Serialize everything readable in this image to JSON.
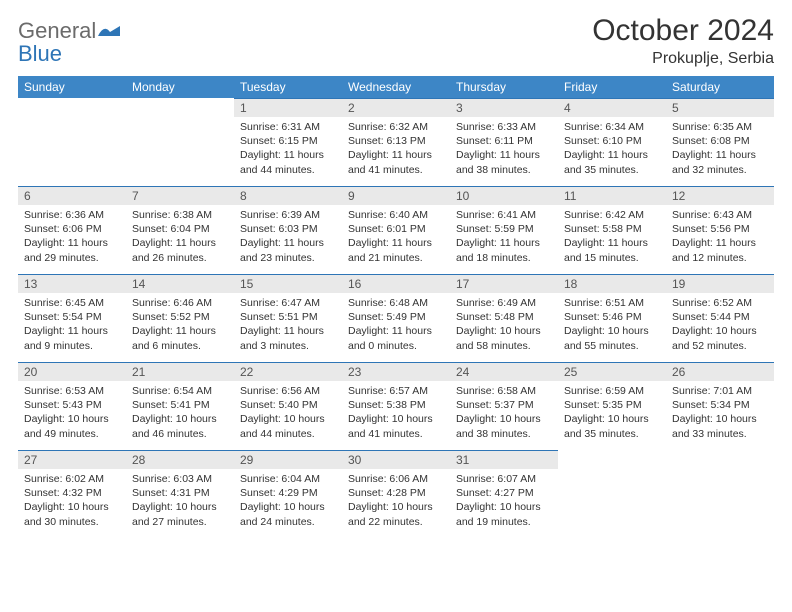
{
  "logo": {
    "text1": "General",
    "text2": "Blue"
  },
  "title": {
    "month_year": "October 2024",
    "location": "Prokuplje, Serbia"
  },
  "colors": {
    "header_bg": "#3d86c6",
    "header_text": "#ffffff",
    "daynum_bg": "#e9e9e9",
    "daynum_border": "#2e75b6",
    "body_text": "#333333",
    "logo_gray": "#6b6b6b",
    "logo_blue": "#2e75b6"
  },
  "fonts": {
    "month_year_size": 30,
    "location_size": 16,
    "header_size": 12,
    "daynum_size": 12,
    "cell_size": 10.5
  },
  "day_labels": [
    "Sunday",
    "Monday",
    "Tuesday",
    "Wednesday",
    "Thursday",
    "Friday",
    "Saturday"
  ],
  "weeks": [
    [
      null,
      null,
      {
        "n": "1",
        "sr": "Sunrise: 6:31 AM",
        "ss": "Sunset: 6:15 PM",
        "dl1": "Daylight: 11 hours",
        "dl2": "and 44 minutes."
      },
      {
        "n": "2",
        "sr": "Sunrise: 6:32 AM",
        "ss": "Sunset: 6:13 PM",
        "dl1": "Daylight: 11 hours",
        "dl2": "and 41 minutes."
      },
      {
        "n": "3",
        "sr": "Sunrise: 6:33 AM",
        "ss": "Sunset: 6:11 PM",
        "dl1": "Daylight: 11 hours",
        "dl2": "and 38 minutes."
      },
      {
        "n": "4",
        "sr": "Sunrise: 6:34 AM",
        "ss": "Sunset: 6:10 PM",
        "dl1": "Daylight: 11 hours",
        "dl2": "and 35 minutes."
      },
      {
        "n": "5",
        "sr": "Sunrise: 6:35 AM",
        "ss": "Sunset: 6:08 PM",
        "dl1": "Daylight: 11 hours",
        "dl2": "and 32 minutes."
      }
    ],
    [
      {
        "n": "6",
        "sr": "Sunrise: 6:36 AM",
        "ss": "Sunset: 6:06 PM",
        "dl1": "Daylight: 11 hours",
        "dl2": "and 29 minutes."
      },
      {
        "n": "7",
        "sr": "Sunrise: 6:38 AM",
        "ss": "Sunset: 6:04 PM",
        "dl1": "Daylight: 11 hours",
        "dl2": "and 26 minutes."
      },
      {
        "n": "8",
        "sr": "Sunrise: 6:39 AM",
        "ss": "Sunset: 6:03 PM",
        "dl1": "Daylight: 11 hours",
        "dl2": "and 23 minutes."
      },
      {
        "n": "9",
        "sr": "Sunrise: 6:40 AM",
        "ss": "Sunset: 6:01 PM",
        "dl1": "Daylight: 11 hours",
        "dl2": "and 21 minutes."
      },
      {
        "n": "10",
        "sr": "Sunrise: 6:41 AM",
        "ss": "Sunset: 5:59 PM",
        "dl1": "Daylight: 11 hours",
        "dl2": "and 18 minutes."
      },
      {
        "n": "11",
        "sr": "Sunrise: 6:42 AM",
        "ss": "Sunset: 5:58 PM",
        "dl1": "Daylight: 11 hours",
        "dl2": "and 15 minutes."
      },
      {
        "n": "12",
        "sr": "Sunrise: 6:43 AM",
        "ss": "Sunset: 5:56 PM",
        "dl1": "Daylight: 11 hours",
        "dl2": "and 12 minutes."
      }
    ],
    [
      {
        "n": "13",
        "sr": "Sunrise: 6:45 AM",
        "ss": "Sunset: 5:54 PM",
        "dl1": "Daylight: 11 hours",
        "dl2": "and 9 minutes."
      },
      {
        "n": "14",
        "sr": "Sunrise: 6:46 AM",
        "ss": "Sunset: 5:52 PM",
        "dl1": "Daylight: 11 hours",
        "dl2": "and 6 minutes."
      },
      {
        "n": "15",
        "sr": "Sunrise: 6:47 AM",
        "ss": "Sunset: 5:51 PM",
        "dl1": "Daylight: 11 hours",
        "dl2": "and 3 minutes."
      },
      {
        "n": "16",
        "sr": "Sunrise: 6:48 AM",
        "ss": "Sunset: 5:49 PM",
        "dl1": "Daylight: 11 hours",
        "dl2": "and 0 minutes."
      },
      {
        "n": "17",
        "sr": "Sunrise: 6:49 AM",
        "ss": "Sunset: 5:48 PM",
        "dl1": "Daylight: 10 hours",
        "dl2": "and 58 minutes."
      },
      {
        "n": "18",
        "sr": "Sunrise: 6:51 AM",
        "ss": "Sunset: 5:46 PM",
        "dl1": "Daylight: 10 hours",
        "dl2": "and 55 minutes."
      },
      {
        "n": "19",
        "sr": "Sunrise: 6:52 AM",
        "ss": "Sunset: 5:44 PM",
        "dl1": "Daylight: 10 hours",
        "dl2": "and 52 minutes."
      }
    ],
    [
      {
        "n": "20",
        "sr": "Sunrise: 6:53 AM",
        "ss": "Sunset: 5:43 PM",
        "dl1": "Daylight: 10 hours",
        "dl2": "and 49 minutes."
      },
      {
        "n": "21",
        "sr": "Sunrise: 6:54 AM",
        "ss": "Sunset: 5:41 PM",
        "dl1": "Daylight: 10 hours",
        "dl2": "and 46 minutes."
      },
      {
        "n": "22",
        "sr": "Sunrise: 6:56 AM",
        "ss": "Sunset: 5:40 PM",
        "dl1": "Daylight: 10 hours",
        "dl2": "and 44 minutes."
      },
      {
        "n": "23",
        "sr": "Sunrise: 6:57 AM",
        "ss": "Sunset: 5:38 PM",
        "dl1": "Daylight: 10 hours",
        "dl2": "and 41 minutes."
      },
      {
        "n": "24",
        "sr": "Sunrise: 6:58 AM",
        "ss": "Sunset: 5:37 PM",
        "dl1": "Daylight: 10 hours",
        "dl2": "and 38 minutes."
      },
      {
        "n": "25",
        "sr": "Sunrise: 6:59 AM",
        "ss": "Sunset: 5:35 PM",
        "dl1": "Daylight: 10 hours",
        "dl2": "and 35 minutes."
      },
      {
        "n": "26",
        "sr": "Sunrise: 7:01 AM",
        "ss": "Sunset: 5:34 PM",
        "dl1": "Daylight: 10 hours",
        "dl2": "and 33 minutes."
      }
    ],
    [
      {
        "n": "27",
        "sr": "Sunrise: 6:02 AM",
        "ss": "Sunset: 4:32 PM",
        "dl1": "Daylight: 10 hours",
        "dl2": "and 30 minutes."
      },
      {
        "n": "28",
        "sr": "Sunrise: 6:03 AM",
        "ss": "Sunset: 4:31 PM",
        "dl1": "Daylight: 10 hours",
        "dl2": "and 27 minutes."
      },
      {
        "n": "29",
        "sr": "Sunrise: 6:04 AM",
        "ss": "Sunset: 4:29 PM",
        "dl1": "Daylight: 10 hours",
        "dl2": "and 24 minutes."
      },
      {
        "n": "30",
        "sr": "Sunrise: 6:06 AM",
        "ss": "Sunset: 4:28 PM",
        "dl1": "Daylight: 10 hours",
        "dl2": "and 22 minutes."
      },
      {
        "n": "31",
        "sr": "Sunrise: 6:07 AM",
        "ss": "Sunset: 4:27 PM",
        "dl1": "Daylight: 10 hours",
        "dl2": "and 19 minutes."
      },
      null,
      null
    ]
  ]
}
